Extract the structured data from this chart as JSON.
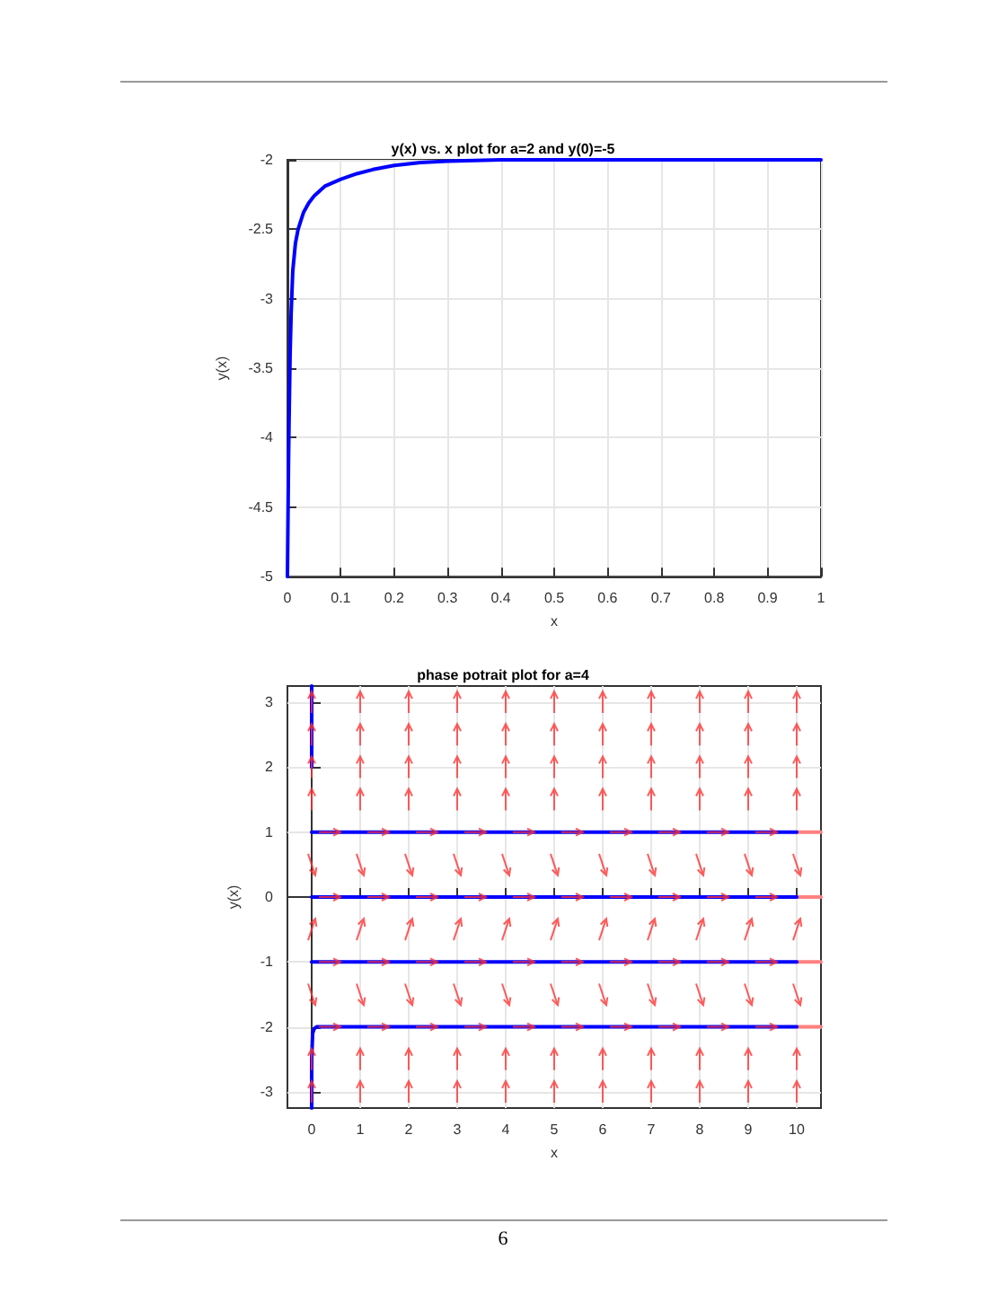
{
  "chart_data": [
    {
      "type": "line",
      "title": "y(x) vs. x plot for a=2 and y(0)=-5",
      "xlabel": "x",
      "ylabel": "y(x)",
      "xlim": [
        0,
        1
      ],
      "ylim": [
        -5,
        -2
      ],
      "xticks": [
        0,
        0.1,
        0.2,
        0.3,
        0.4,
        0.5,
        0.6,
        0.7,
        0.8,
        0.9,
        1
      ],
      "yticks": [
        -5,
        -4.5,
        -4,
        -3.5,
        -3,
        -2.5,
        -2
      ],
      "grid": true,
      "series": [
        {
          "color": "#0000ff",
          "x": [
            0,
            0.001,
            0.002,
            0.003,
            0.005,
            0.007,
            0.01,
            0.015,
            0.02,
            0.03,
            0.04,
            0.05,
            0.07,
            0.1,
            0.13,
            0.16,
            0.2,
            0.25,
            0.3,
            0.4,
            0.5,
            0.7,
            1
          ],
          "values": [
            -5,
            -4.6,
            -4.2,
            -3.9,
            -3.4,
            -3.1,
            -2.8,
            -2.6,
            -2.5,
            -2.38,
            -2.31,
            -2.26,
            -2.19,
            -2.14,
            -2.1,
            -2.07,
            -2.04,
            -2.02,
            -2.01,
            -2.0,
            -2.0,
            -2.0,
            -2.0
          ]
        }
      ]
    },
    {
      "type": "line",
      "title": "phase potrait plot for a=4",
      "xlabel": "x",
      "ylabel": "y(x)",
      "xlim": [
        -0.5,
        10.5
      ],
      "ylim": [
        -3.25,
        3.25
      ],
      "xticks": [
        0,
        1,
        2,
        3,
        4,
        5,
        6,
        7,
        8,
        9,
        10
      ],
      "yticks": [
        -3,
        -2,
        -1,
        0,
        1,
        2,
        3
      ],
      "grid": true,
      "annotations": [
        "6"
      ],
      "series": [
        {
          "color": "#ff8080",
          "x": [
            10,
            10.5
          ],
          "values": [
            1,
            1
          ]
        },
        {
          "color": "#ff8080",
          "x": [
            10,
            10.5
          ],
          "values": [
            0,
            0
          ]
        },
        {
          "color": "#ff8080",
          "x": [
            10,
            10.5
          ],
          "values": [
            -1,
            -1
          ]
        },
        {
          "color": "#ff8080",
          "x": [
            10,
            10.5
          ],
          "values": [
            -2,
            -2
          ]
        },
        {
          "color": "#0000ff",
          "x": [
            0,
            0
          ],
          "values": [
            3.25,
            2
          ]
        },
        {
          "color": "#0000ff",
          "x": [
            0,
            10
          ],
          "values": [
            1,
            1
          ]
        },
        {
          "color": "#0000ff",
          "x": [
            0,
            10
          ],
          "values": [
            0,
            0
          ]
        },
        {
          "color": "#0000ff",
          "x": [
            0,
            10
          ],
          "values": [
            -1,
            -1
          ]
        },
        {
          "color": "#0000ff",
          "x": [
            0,
            0,
            0.02,
            0.05,
            0.1,
            10
          ],
          "values": [
            -3.25,
            -2.5,
            -2.1,
            -2.03,
            -2,
            -2
          ]
        }
      ]
    }
  ]
}
